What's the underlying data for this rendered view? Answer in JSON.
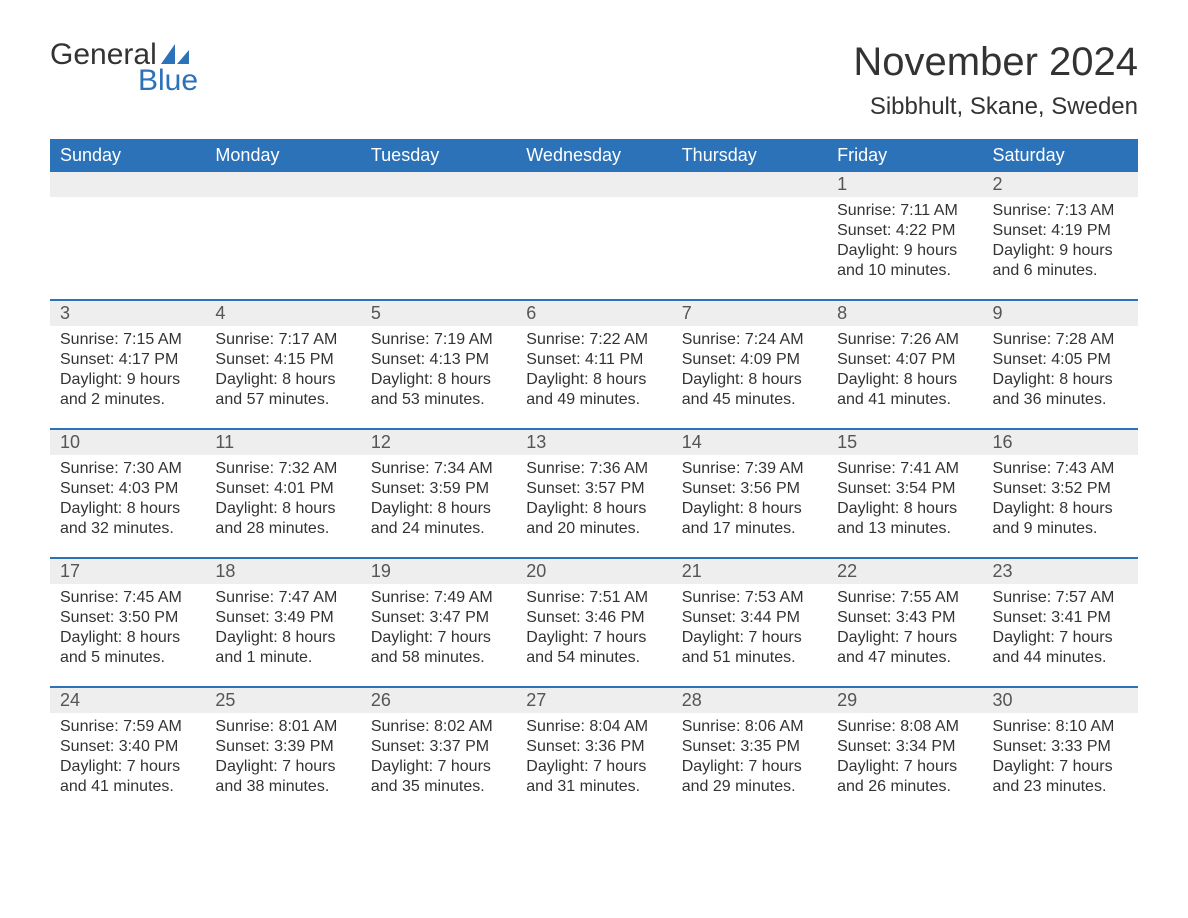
{
  "logo": {
    "part1": "General",
    "part2": "Blue",
    "flag_color": "#2c72b8"
  },
  "title": "November 2024",
  "location": "Sibbhult, Skane, Sweden",
  "colors": {
    "header_bg": "#2c72b8",
    "header_text": "#ffffff",
    "daynum_bg": "#eeeeee",
    "text": "#333333",
    "rule": "#2c72b8"
  },
  "day_headers": [
    "Sunday",
    "Monday",
    "Tuesday",
    "Wednesday",
    "Thursday",
    "Friday",
    "Saturday"
  ],
  "weeks": [
    [
      null,
      null,
      null,
      null,
      null,
      {
        "n": "1",
        "sunrise": "Sunrise: 7:11 AM",
        "sunset": "Sunset: 4:22 PM",
        "daylight": "Daylight: 9 hours and 10 minutes."
      },
      {
        "n": "2",
        "sunrise": "Sunrise: 7:13 AM",
        "sunset": "Sunset: 4:19 PM",
        "daylight": "Daylight: 9 hours and 6 minutes."
      }
    ],
    [
      {
        "n": "3",
        "sunrise": "Sunrise: 7:15 AM",
        "sunset": "Sunset: 4:17 PM",
        "daylight": "Daylight: 9 hours and 2 minutes."
      },
      {
        "n": "4",
        "sunrise": "Sunrise: 7:17 AM",
        "sunset": "Sunset: 4:15 PM",
        "daylight": "Daylight: 8 hours and 57 minutes."
      },
      {
        "n": "5",
        "sunrise": "Sunrise: 7:19 AM",
        "sunset": "Sunset: 4:13 PM",
        "daylight": "Daylight: 8 hours and 53 minutes."
      },
      {
        "n": "6",
        "sunrise": "Sunrise: 7:22 AM",
        "sunset": "Sunset: 4:11 PM",
        "daylight": "Daylight: 8 hours and 49 minutes."
      },
      {
        "n": "7",
        "sunrise": "Sunrise: 7:24 AM",
        "sunset": "Sunset: 4:09 PM",
        "daylight": "Daylight: 8 hours and 45 minutes."
      },
      {
        "n": "8",
        "sunrise": "Sunrise: 7:26 AM",
        "sunset": "Sunset: 4:07 PM",
        "daylight": "Daylight: 8 hours and 41 minutes."
      },
      {
        "n": "9",
        "sunrise": "Sunrise: 7:28 AM",
        "sunset": "Sunset: 4:05 PM",
        "daylight": "Daylight: 8 hours and 36 minutes."
      }
    ],
    [
      {
        "n": "10",
        "sunrise": "Sunrise: 7:30 AM",
        "sunset": "Sunset: 4:03 PM",
        "daylight": "Daylight: 8 hours and 32 minutes."
      },
      {
        "n": "11",
        "sunrise": "Sunrise: 7:32 AM",
        "sunset": "Sunset: 4:01 PM",
        "daylight": "Daylight: 8 hours and 28 minutes."
      },
      {
        "n": "12",
        "sunrise": "Sunrise: 7:34 AM",
        "sunset": "Sunset: 3:59 PM",
        "daylight": "Daylight: 8 hours and 24 minutes."
      },
      {
        "n": "13",
        "sunrise": "Sunrise: 7:36 AM",
        "sunset": "Sunset: 3:57 PM",
        "daylight": "Daylight: 8 hours and 20 minutes."
      },
      {
        "n": "14",
        "sunrise": "Sunrise: 7:39 AM",
        "sunset": "Sunset: 3:56 PM",
        "daylight": "Daylight: 8 hours and 17 minutes."
      },
      {
        "n": "15",
        "sunrise": "Sunrise: 7:41 AM",
        "sunset": "Sunset: 3:54 PM",
        "daylight": "Daylight: 8 hours and 13 minutes."
      },
      {
        "n": "16",
        "sunrise": "Sunrise: 7:43 AM",
        "sunset": "Sunset: 3:52 PM",
        "daylight": "Daylight: 8 hours and 9 minutes."
      }
    ],
    [
      {
        "n": "17",
        "sunrise": "Sunrise: 7:45 AM",
        "sunset": "Sunset: 3:50 PM",
        "daylight": "Daylight: 8 hours and 5 minutes."
      },
      {
        "n": "18",
        "sunrise": "Sunrise: 7:47 AM",
        "sunset": "Sunset: 3:49 PM",
        "daylight": "Daylight: 8 hours and 1 minute."
      },
      {
        "n": "19",
        "sunrise": "Sunrise: 7:49 AM",
        "sunset": "Sunset: 3:47 PM",
        "daylight": "Daylight: 7 hours and 58 minutes."
      },
      {
        "n": "20",
        "sunrise": "Sunrise: 7:51 AM",
        "sunset": "Sunset: 3:46 PM",
        "daylight": "Daylight: 7 hours and 54 minutes."
      },
      {
        "n": "21",
        "sunrise": "Sunrise: 7:53 AM",
        "sunset": "Sunset: 3:44 PM",
        "daylight": "Daylight: 7 hours and 51 minutes."
      },
      {
        "n": "22",
        "sunrise": "Sunrise: 7:55 AM",
        "sunset": "Sunset: 3:43 PM",
        "daylight": "Daylight: 7 hours and 47 minutes."
      },
      {
        "n": "23",
        "sunrise": "Sunrise: 7:57 AM",
        "sunset": "Sunset: 3:41 PM",
        "daylight": "Daylight: 7 hours and 44 minutes."
      }
    ],
    [
      {
        "n": "24",
        "sunrise": "Sunrise: 7:59 AM",
        "sunset": "Sunset: 3:40 PM",
        "daylight": "Daylight: 7 hours and 41 minutes."
      },
      {
        "n": "25",
        "sunrise": "Sunrise: 8:01 AM",
        "sunset": "Sunset: 3:39 PM",
        "daylight": "Daylight: 7 hours and 38 minutes."
      },
      {
        "n": "26",
        "sunrise": "Sunrise: 8:02 AM",
        "sunset": "Sunset: 3:37 PM",
        "daylight": "Daylight: 7 hours and 35 minutes."
      },
      {
        "n": "27",
        "sunrise": "Sunrise: 8:04 AM",
        "sunset": "Sunset: 3:36 PM",
        "daylight": "Daylight: 7 hours and 31 minutes."
      },
      {
        "n": "28",
        "sunrise": "Sunrise: 8:06 AM",
        "sunset": "Sunset: 3:35 PM",
        "daylight": "Daylight: 7 hours and 29 minutes."
      },
      {
        "n": "29",
        "sunrise": "Sunrise: 8:08 AM",
        "sunset": "Sunset: 3:34 PM",
        "daylight": "Daylight: 7 hours and 26 minutes."
      },
      {
        "n": "30",
        "sunrise": "Sunrise: 8:10 AM",
        "sunset": "Sunset: 3:33 PM",
        "daylight": "Daylight: 7 hours and 23 minutes."
      }
    ]
  ]
}
